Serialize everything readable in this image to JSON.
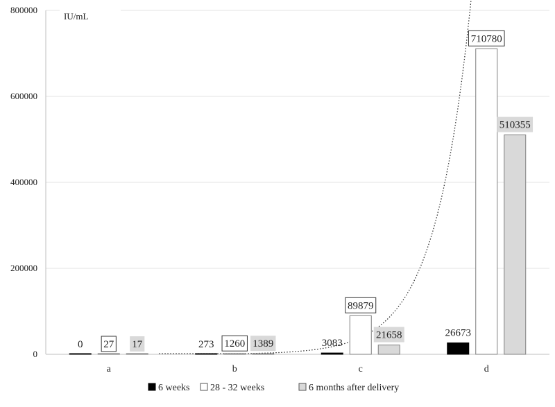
{
  "chart_data": {
    "type": "bar",
    "unit_label": "IU/mL",
    "categories": [
      "a",
      "b",
      "c",
      "d"
    ],
    "ylim": [
      0,
      800000
    ],
    "yticks": [
      "0",
      "200000",
      "400000",
      "600000",
      "800000"
    ],
    "grid": true,
    "legend_position": "bottom",
    "series": [
      {
        "name": "6 weeks",
        "values": [
          0,
          273,
          3083,
          26673
        ],
        "labels": [
          "0",
          "273",
          "3083",
          "26673"
        ],
        "color": "#000000",
        "label_style": "plain"
      },
      {
        "name": "28 - 32 weeks",
        "values": [
          27,
          1260,
          89879,
          710780
        ],
        "labels": [
          "27",
          "1260",
          "89879",
          "710780"
        ],
        "color": "#ffffff",
        "label_style": "boxed"
      },
      {
        "name": "6 months after delivery",
        "values": [
          17,
          1389,
          21658,
          510355
        ],
        "labels": [
          "17",
          "1389",
          "21658",
          "510355"
        ],
        "color": "#d9d9d9",
        "label_style": "shaded"
      }
    ],
    "trendline": {
      "type": "exponential",
      "style": "dotted",
      "color": "#333333"
    }
  }
}
